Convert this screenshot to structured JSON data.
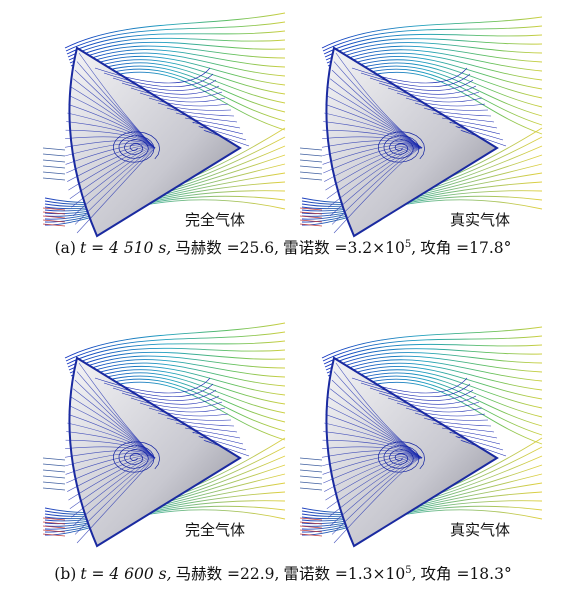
{
  "figure": {
    "rows": [
      {
        "images": [
          {
            "label": "完全气体"
          },
          {
            "label": "真实气体"
          }
        ],
        "caption": {
          "tag": "(a)",
          "time": "t = 4 510 s,",
          "mach": "马赫数 =25.6,",
          "re_base": "雷诺数 =3.2×10",
          "re_exp": "5",
          "re_sep": ",",
          "aoa": "攻角 =17.8°"
        }
      },
      {
        "images": [
          {
            "label": "完全气体"
          },
          {
            "label": "真实气体"
          }
        ],
        "caption": {
          "tag": "(b)",
          "time": "t = 4 600 s,",
          "mach": "马赫数 =22.9,",
          "re_base": "雷诺数 =1.3×10",
          "re_exp": "5",
          "re_sep": ",",
          "aoa": "攻角 =18.3°"
        }
      }
    ]
  }
}
